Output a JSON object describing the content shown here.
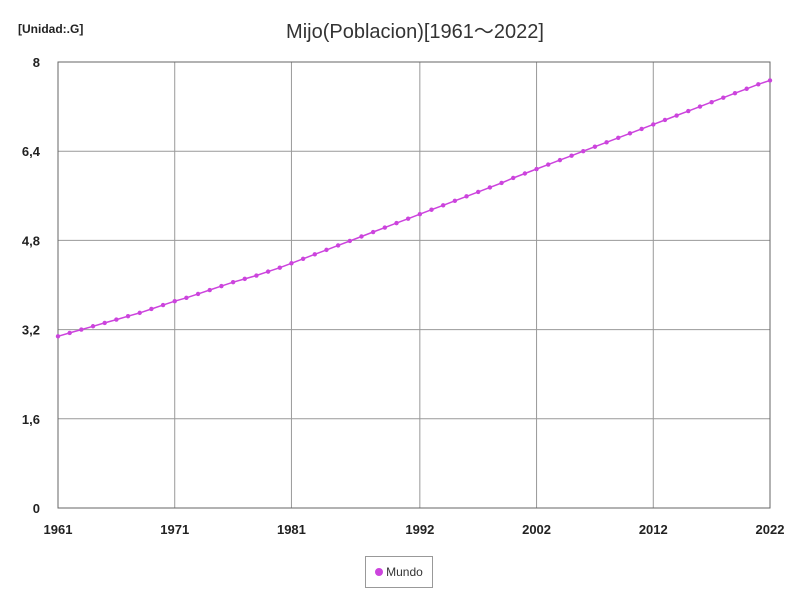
{
  "unit_label": "[Unidad:.G]",
  "chart_data": {
    "type": "line",
    "title": "Mijo(Poblacion)[1961〜2022]",
    "xlabel": "",
    "ylabel": "",
    "xlim": [
      1961,
      2022
    ],
    "ylim": [
      0,
      8
    ],
    "x_ticks": [
      1961,
      1971,
      1981,
      1992,
      2002,
      2012,
      2022
    ],
    "y_ticks": [
      {
        "value": 0,
        "label": "0"
      },
      {
        "value": 1.6,
        "label": "1,6"
      },
      {
        "value": 3.2,
        "label": "3,2"
      },
      {
        "value": 4.8,
        "label": "4,8"
      },
      {
        "value": 6.4,
        "label": "6,4"
      },
      {
        "value": 8,
        "label": "8"
      }
    ],
    "grid": true,
    "legend_position": "bottom-center",
    "series": [
      {
        "name": "Mundo",
        "color": "#cc44dd",
        "x": [
          1961,
          1962,
          1963,
          1964,
          1965,
          1966,
          1967,
          1968,
          1969,
          1970,
          1971,
          1972,
          1973,
          1974,
          1975,
          1976,
          1977,
          1978,
          1979,
          1980,
          1981,
          1982,
          1983,
          1984,
          1985,
          1986,
          1987,
          1988,
          1989,
          1990,
          1991,
          1992,
          1993,
          1994,
          1995,
          1996,
          1997,
          1998,
          1999,
          2000,
          2001,
          2002,
          2003,
          2004,
          2005,
          2006,
          2007,
          2008,
          2009,
          2010,
          2011,
          2012,
          2013,
          2014,
          2015,
          2016,
          2017,
          2018,
          2019,
          2020,
          2021,
          2022
        ],
        "values": [
          3.08,
          3.14,
          3.2,
          3.26,
          3.32,
          3.38,
          3.44,
          3.5,
          3.57,
          3.64,
          3.71,
          3.77,
          3.84,
          3.91,
          3.98,
          4.05,
          4.11,
          4.17,
          4.24,
          4.31,
          4.39,
          4.47,
          4.55,
          4.63,
          4.71,
          4.79,
          4.87,
          4.95,
          5.03,
          5.11,
          5.19,
          5.27,
          5.35,
          5.43,
          5.51,
          5.59,
          5.67,
          5.75,
          5.83,
          5.92,
          6.0,
          6.08,
          6.16,
          6.24,
          6.32,
          6.4,
          6.48,
          6.56,
          6.64,
          6.72,
          6.8,
          6.88,
          6.96,
          7.04,
          7.12,
          7.2,
          7.28,
          7.36,
          7.44,
          7.52,
          7.6,
          7.67
        ]
      }
    ]
  }
}
